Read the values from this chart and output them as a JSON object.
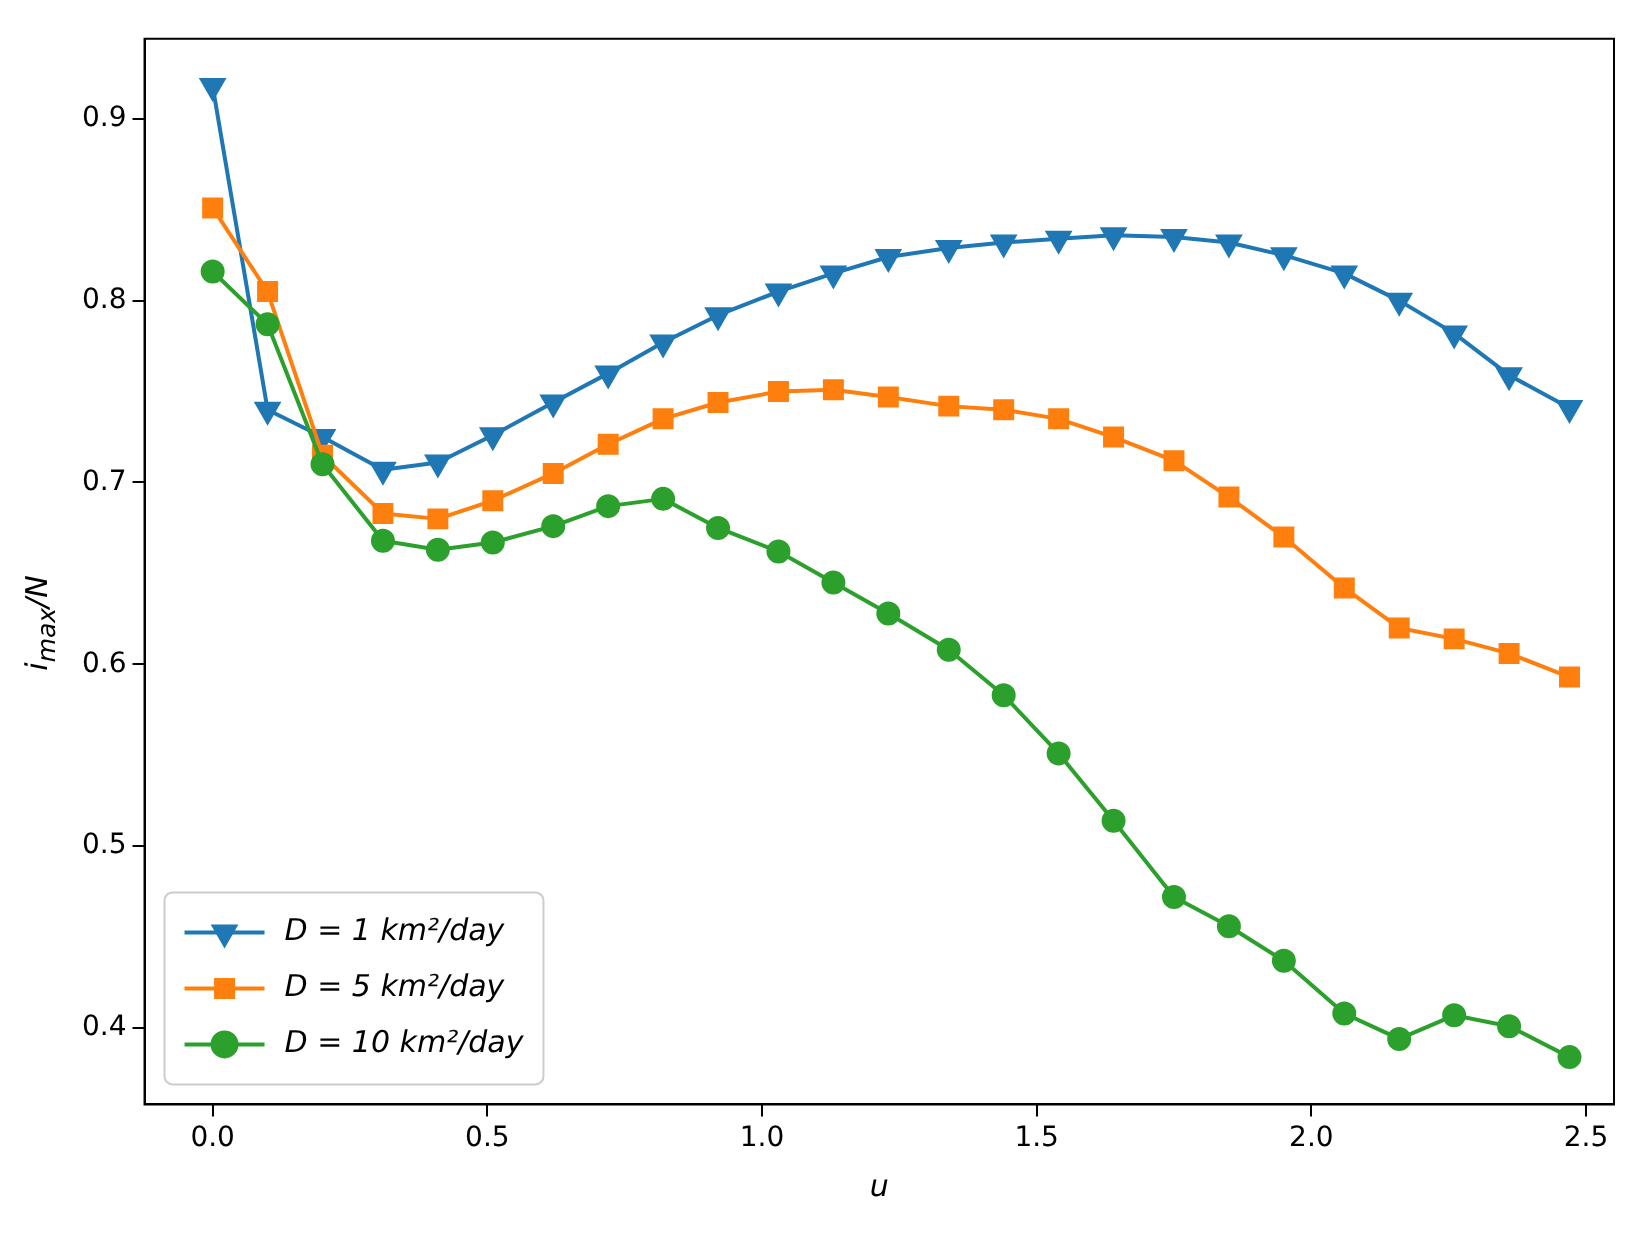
{
  "chart_data": {
    "type": "line",
    "xlabel": "u",
    "ylabel": "i$_{max}$/N",
    "xlim": [
      -0.124,
      2.551
    ],
    "xticks": [
      {
        "value": 0,
        "label": "0.0"
      },
      0.5,
      {
        "value": 1,
        "label": "1.0"
      },
      1.5,
      {
        "value": 2,
        "label": "2.0"
      },
      2.5
    ],
    "ylim": [
      0.358,
      0.944
    ],
    "yticks": [
      0.4,
      0.5,
      0.6,
      0.7,
      0.8,
      0.9
    ],
    "grid": false,
    "legend": "bottom left",
    "line_style": "solid",
    "series": [
      {
        "name": "D = 1 km²/day",
        "color": "#1f77b4",
        "marker": "triangle",
        "x": [
          0,
          0.1,
          0.2,
          0.31,
          0.41,
          0.51,
          0.62,
          0.72,
          0.82,
          0.92,
          1.03,
          1.13,
          1.23,
          1.34,
          1.44,
          1.54,
          1.64,
          1.75,
          1.85,
          1.95,
          2.06,
          2.16,
          2.26,
          2.36,
          2.47
        ],
        "values": [
          0.918,
          0.74,
          0.725,
          0.707,
          0.711,
          0.726,
          0.744,
          0.76,
          0.777,
          0.792,
          0.805,
          0.815,
          0.824,
          0.829,
          0.832,
          0.834,
          0.836,
          0.835,
          0.832,
          0.825,
          0.815,
          0.8,
          0.782,
          0.759,
          0.741
        ]
      },
      {
        "name": "D = 5 km²/day",
        "color": "#ff7f0e",
        "marker": "square",
        "x": [
          0,
          0.1,
          0.2,
          0.31,
          0.41,
          0.51,
          0.62,
          0.72,
          0.82,
          0.92,
          1.03,
          1.13,
          1.23,
          1.34,
          1.44,
          1.54,
          1.64,
          1.75,
          1.85,
          1.95,
          2.06,
          2.16,
          2.26,
          2.36,
          2.47
        ],
        "values": [
          0.851,
          0.805,
          0.715,
          0.683,
          0.68,
          0.69,
          0.705,
          0.721,
          0.735,
          0.744,
          0.75,
          0.751,
          0.747,
          0.742,
          0.74,
          0.735,
          0.725,
          0.712,
          0.692,
          0.67,
          0.642,
          0.62,
          0.614,
          0.606,
          0.593
        ]
      },
      {
        "name": "D = 10 km²/day",
        "color": "#2ca02c",
        "marker": "circle",
        "x": [
          0,
          0.1,
          0.2,
          0.31,
          0.41,
          0.51,
          0.62,
          0.72,
          0.82,
          0.92,
          1.03,
          1.13,
          1.23,
          1.34,
          1.44,
          1.54,
          1.64,
          1.75,
          1.85,
          1.95,
          2.06,
          2.16,
          2.26,
          2.36,
          2.47
        ],
        "values": [
          0.816,
          0.787,
          0.71,
          0.668,
          0.663,
          0.667,
          0.676,
          0.687,
          0.691,
          0.675,
          0.662,
          0.645,
          0.628,
          0.608,
          0.583,
          0.551,
          0.514,
          0.472,
          0.456,
          0.437,
          0.408,
          0.394,
          0.407,
          0.401,
          0.384
        ]
      }
    ]
  }
}
